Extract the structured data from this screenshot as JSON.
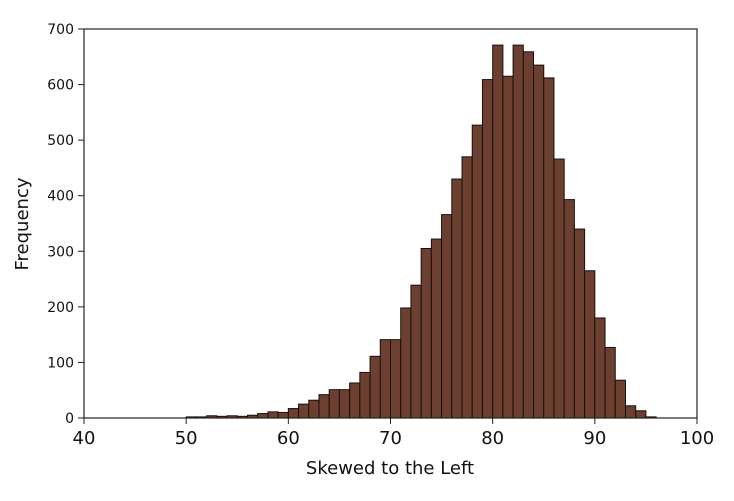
{
  "chart_data": {
    "type": "bar",
    "title": "",
    "xlabel": "Skewed to the Left",
    "ylabel": "Frequency",
    "xlim": [
      40,
      100
    ],
    "ylim": [
      0,
      700
    ],
    "x_ticks": [
      "40",
      "50",
      "60",
      "70",
      "80",
      "90",
      "100"
    ],
    "y_ticks": [
      "0",
      "100",
      "200",
      "300",
      "400",
      "500",
      "600",
      "700"
    ],
    "grid": false,
    "bar_fill": "#6b4031",
    "bar_edge": "#1a0f0a",
    "bin_width": 1,
    "bins": [
      {
        "x": 50,
        "y": 2
      },
      {
        "x": 51,
        "y": 2
      },
      {
        "x": 52,
        "y": 4
      },
      {
        "x": 53,
        "y": 3
      },
      {
        "x": 54,
        "y": 4
      },
      {
        "x": 55,
        "y": 3
      },
      {
        "x": 56,
        "y": 5
      },
      {
        "x": 57,
        "y": 8
      },
      {
        "x": 58,
        "y": 11
      },
      {
        "x": 59,
        "y": 10
      },
      {
        "x": 60,
        "y": 17
      },
      {
        "x": 61,
        "y": 25
      },
      {
        "x": 62,
        "y": 32
      },
      {
        "x": 63,
        "y": 42
      },
      {
        "x": 64,
        "y": 51
      },
      {
        "x": 65,
        "y": 51
      },
      {
        "x": 66,
        "y": 63
      },
      {
        "x": 67,
        "y": 82
      },
      {
        "x": 68,
        "y": 111
      },
      {
        "x": 69,
        "y": 141
      },
      {
        "x": 70,
        "y": 141
      },
      {
        "x": 71,
        "y": 198
      },
      {
        "x": 72,
        "y": 239
      },
      {
        "x": 73,
        "y": 305
      },
      {
        "x": 74,
        "y": 322
      },
      {
        "x": 75,
        "y": 366
      },
      {
        "x": 76,
        "y": 430
      },
      {
        "x": 77,
        "y": 470
      },
      {
        "x": 78,
        "y": 527
      },
      {
        "x": 79,
        "y": 609
      },
      {
        "x": 80,
        "y": 671
      },
      {
        "x": 81,
        "y": 615
      },
      {
        "x": 82,
        "y": 671
      },
      {
        "x": 83,
        "y": 659
      },
      {
        "x": 84,
        "y": 635
      },
      {
        "x": 85,
        "y": 612
      },
      {
        "x": 86,
        "y": 466
      },
      {
        "x": 87,
        "y": 393
      },
      {
        "x": 88,
        "y": 340
      },
      {
        "x": 89,
        "y": 265
      },
      {
        "x": 90,
        "y": 180
      },
      {
        "x": 91,
        "y": 127
      },
      {
        "x": 92,
        "y": 68
      },
      {
        "x": 93,
        "y": 22
      },
      {
        "x": 94,
        "y": 13
      },
      {
        "x": 95,
        "y": 2
      }
    ]
  }
}
